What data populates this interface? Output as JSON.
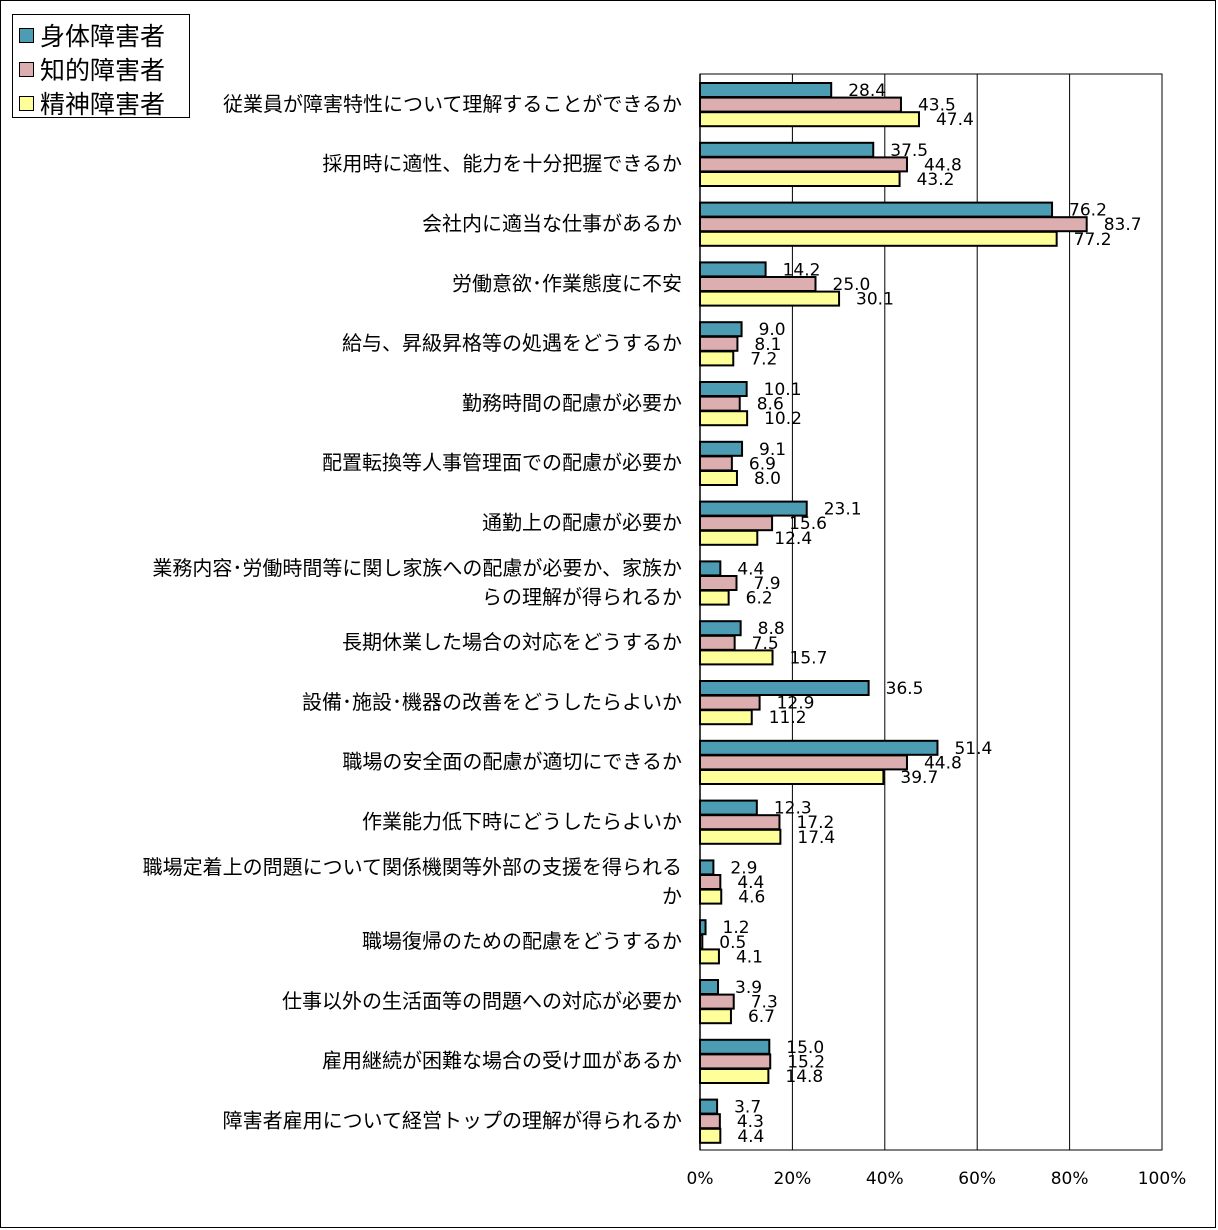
{
  "chart_data": {
    "type": "bar",
    "orientation": "horizontal",
    "legend_position": "top-left",
    "grid": true,
    "xlim": [
      0,
      100
    ],
    "x_ticks": [
      "0%",
      "20%",
      "40%",
      "60%",
      "80%",
      "100%"
    ],
    "x_tick_values": [
      0,
      20,
      40,
      60,
      80,
      100
    ],
    "categories": [
      [
        "従業員が障害特性について理解することができるか"
      ],
      [
        "採用時に適性、能力を十分把握できるか"
      ],
      [
        "会社内に適当な仕事があるか"
      ],
      [
        "労働意欲･作業態度に不安"
      ],
      [
        "給与、昇級昇格等の処遇をどうするか"
      ],
      [
        "勤務時間の配慮が必要か"
      ],
      [
        "配置転換等人事管理面での配慮が必要か"
      ],
      [
        "通勤上の配慮が必要か"
      ],
      [
        "業務内容･労働時間等に関し家族への配慮が必要か、家族か",
        "らの理解が得られるか"
      ],
      [
        "長期休業した場合の対応をどうするか"
      ],
      [
        "設備･施設･機器の改善をどうしたらよいか"
      ],
      [
        "職場の安全面の配慮が適切にできるか"
      ],
      [
        "作業能力低下時にどうしたらよいか"
      ],
      [
        "職場定着上の問題について関係機関等外部の支援を得られる",
        "か"
      ],
      [
        "職場復帰のための配慮をどうするか"
      ],
      [
        "仕事以外の生活面等の問題への対応が必要か"
      ],
      [
        "雇用継続が困難な場合の受け皿があるか"
      ],
      [
        "障害者雇用について経営トップの理解が得られるか"
      ]
    ],
    "series": [
      {
        "name": "身体障害者",
        "color": "#4c9cb4",
        "values": [
          28.4,
          37.5,
          76.2,
          14.2,
          9.0,
          10.1,
          9.1,
          23.1,
          4.4,
          8.8,
          36.5,
          51.4,
          12.3,
          2.9,
          1.2,
          3.9,
          15.0,
          3.7
        ],
        "labels": [
          "28.4",
          "37.5",
          "76.2",
          "14.2",
          "9.0",
          "10.1",
          "9.1",
          "23.1",
          "4.4",
          "8.8",
          "36.5",
          "51.4",
          "12.3",
          "2.9",
          "1.2",
          "3.9",
          "15.0",
          "3.7"
        ]
      },
      {
        "name": "知的障害者",
        "color": "#dcaeb0",
        "values": [
          43.5,
          44.8,
          83.7,
          25.0,
          8.1,
          8.6,
          6.9,
          15.6,
          7.9,
          7.5,
          12.9,
          44.8,
          17.2,
          4.4,
          0.5,
          7.3,
          15.2,
          4.3
        ],
        "labels": [
          "43.5",
          "44.8",
          "83.7",
          "25.0",
          "8.1",
          "8.6",
          "6.9",
          "15.6",
          "7.9",
          "7.5",
          "12.9",
          "44.8",
          "17.2",
          "4.4",
          "0.5",
          "7.3",
          "15.2",
          "4.3"
        ]
      },
      {
        "name": "精神障害者",
        "color": "#ffff9a",
        "values": [
          47.4,
          43.2,
          77.2,
          30.1,
          7.2,
          10.2,
          8.0,
          12.4,
          6.2,
          15.7,
          11.2,
          39.7,
          17.4,
          4.6,
          4.1,
          6.7,
          14.8,
          4.4
        ],
        "labels": [
          "47.4",
          "43.2",
          "77.2",
          "30.1",
          "7.2",
          "10.2",
          "8.0",
          "12.4",
          "6.2",
          "15.7",
          "11.2",
          "39.7",
          "17.4",
          "4.6",
          "4.1",
          "6.7",
          "14.8",
          "4.4"
        ]
      }
    ]
  }
}
